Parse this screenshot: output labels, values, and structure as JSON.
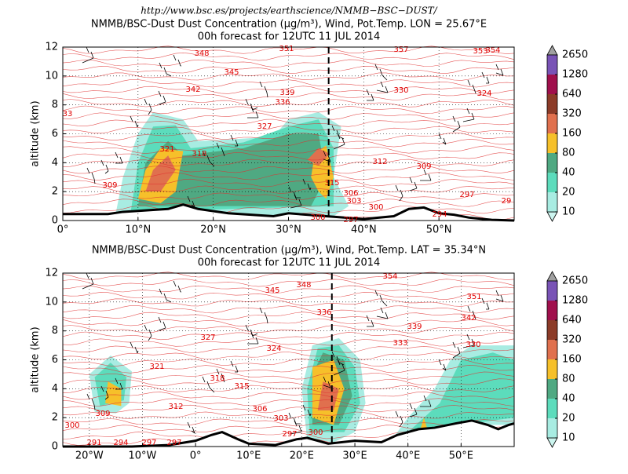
{
  "header": {
    "url": "http://www.bsc.es/projects/earthscience/NMMB−BSC−DUST/"
  },
  "chart_data": [
    {
      "type": "contour",
      "title": [
        "NMMB/BSC-Dust Dust Concentration (µg/m³), Wind, Pot.Temp. LON = 25.67°E",
        "00h forecast for 12UTC 11 JUL 2014"
      ],
      "ylabel": "altitude (km)",
      "xlim": [
        0,
        60
      ],
      "xticks": [
        {
          "value": 0,
          "label": "0°"
        },
        {
          "value": 10,
          "label": "10°N"
        },
        {
          "value": 20,
          "label": "20°N"
        },
        {
          "value": 30,
          "label": "30°N"
        },
        {
          "value": 40,
          "label": "40°N"
        },
        {
          "value": 50,
          "label": "50°N"
        }
      ],
      "ylim": [
        0,
        12
      ],
      "yticks": [
        0,
        2,
        4,
        6,
        8,
        10,
        12
      ],
      "grid": true,
      "section_line": 35.34,
      "contour_labels": [
        "348",
        "351",
        "357",
        "353",
        "354",
        "345",
        "342",
        "339",
        "336",
        "330",
        "324",
        "33",
        "327",
        "321",
        "318",
        "312",
        "309",
        "309",
        "315",
        "306",
        "303",
        "297",
        "300",
        "300",
        "297",
        "294",
        "29"
      ],
      "colorbar": {
        "levels": [
          10,
          20,
          40,
          80,
          160,
          320,
          640,
          1280,
          2650
        ],
        "colors": [
          "#a8ece2",
          "#5cdcbc",
          "#4fa982",
          "#f6c02a",
          "#e0704e",
          "#8c3b28",
          "#a00f4c",
          "#7953b6"
        ],
        "under": "#ccf5ef",
        "over": "#a0a0a0"
      }
    },
    {
      "type": "contour",
      "title": [
        "NMMB/BSC-Dust Dust Concentration (µg/m³), Wind, Pot.Temp. LAT = 35.34°N",
        "00h forecast for 12UTC 11 JUL 2014"
      ],
      "ylabel": "altitude (km)",
      "xlim": [
        -25,
        60
      ],
      "xticks": [
        {
          "value": -20,
          "label": "20°W"
        },
        {
          "value": -10,
          "label": "10°W"
        },
        {
          "value": 0,
          "label": "0°"
        },
        {
          "value": 10,
          "label": "10°E"
        },
        {
          "value": 20,
          "label": "20°E"
        },
        {
          "value": 30,
          "label": "30°E"
        },
        {
          "value": 40,
          "label": "40°E"
        },
        {
          "value": 50,
          "label": "50°E"
        }
      ],
      "ylim": [
        0,
        12
      ],
      "yticks": [
        0,
        2,
        4,
        6,
        8,
        10,
        12
      ],
      "grid": true,
      "section_line": 25.67,
      "contour_labels": [
        "354",
        "348",
        "345",
        "351",
        "336",
        "342",
        "339",
        "327",
        "333",
        "330",
        "324",
        "321",
        "318",
        "315",
        "312",
        "306",
        "309",
        "303",
        "300",
        "297",
        "300",
        "291",
        "294",
        "297",
        "297"
      ],
      "colorbar": {
        "levels": [
          10,
          20,
          40,
          80,
          160,
          320,
          640,
          1280,
          2650
        ],
        "colors": [
          "#a8ece2",
          "#5cdcbc",
          "#4fa982",
          "#f6c02a",
          "#e0704e",
          "#8c3b28",
          "#a00f4c",
          "#7953b6"
        ],
        "under": "#ccf5ef",
        "over": "#a0a0a0"
      }
    }
  ]
}
